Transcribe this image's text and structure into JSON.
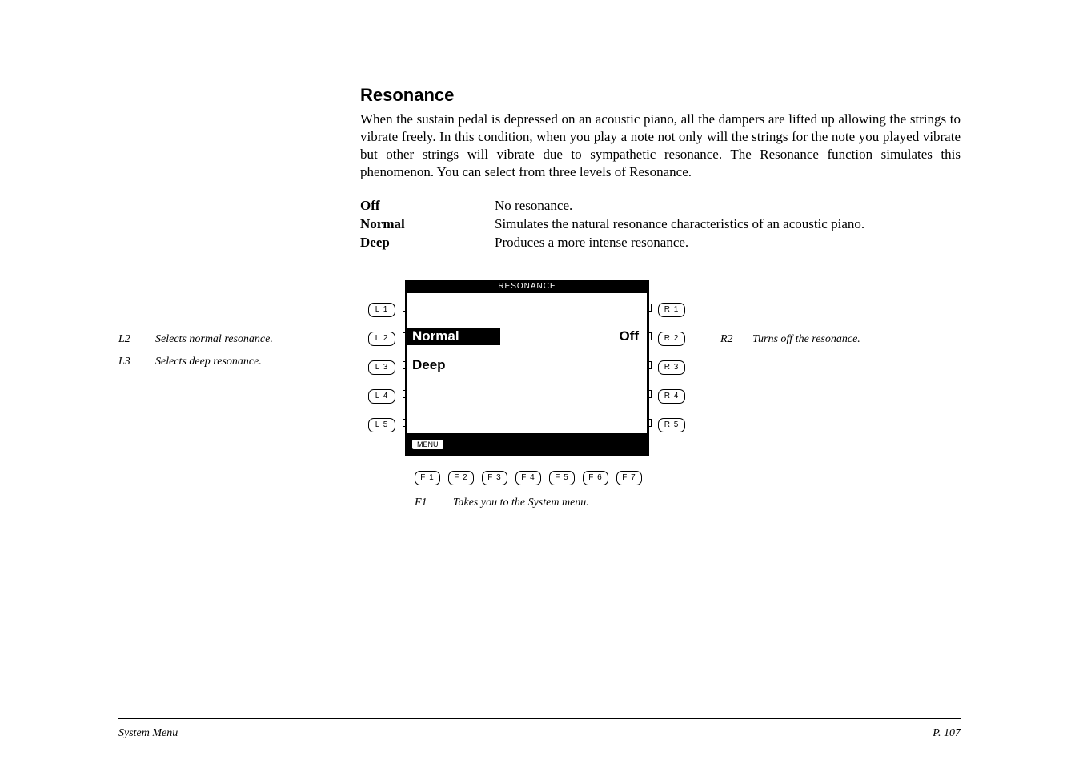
{
  "heading": "Resonance",
  "body": "When the sustain pedal is depressed on an acoustic piano, all the dampers are lifted up allowing the strings to vibrate freely.  In this condition, when you play a note not only will the strings for the note you played vibrate but other strings will vibrate due to sympathetic resonance.  The Resonance function simulates this phenomenon.  You can select from three levels of Resonance.",
  "definitions": [
    {
      "term": "Off",
      "desc": "No resonance."
    },
    {
      "term": "Normal",
      "desc": "Simulates the natural resonance characteristics of an acoustic piano."
    },
    {
      "term": "Deep",
      "desc": "Produces a more intense resonance."
    }
  ],
  "left_notes": [
    {
      "key": "L2",
      "text": "Selects normal resonance."
    },
    {
      "key": "L3",
      "text": "Selects deep resonance."
    }
  ],
  "right_notes": [
    {
      "key": "R2",
      "text": "Turns off the resonance."
    }
  ],
  "f_note": {
    "key": "F1",
    "text": "Takes you to the System menu."
  },
  "lcd": {
    "title": "RESONANCE",
    "menu_label": "MENU",
    "row2_left": "Normal",
    "row2_right": "Off",
    "row3_left": "Deep"
  },
  "buttons": {
    "L": [
      "L 1",
      "L 2",
      "L 3",
      "L 4",
      "L 5"
    ],
    "R": [
      "R 1",
      "R 2",
      "R 3",
      "R 4",
      "R 5"
    ],
    "F": [
      "F 1",
      "F 2",
      "F 3",
      "F 4",
      "F 5",
      "F 6",
      "F 7"
    ]
  },
  "footer": {
    "left": "System Menu",
    "right": "P. 107"
  }
}
